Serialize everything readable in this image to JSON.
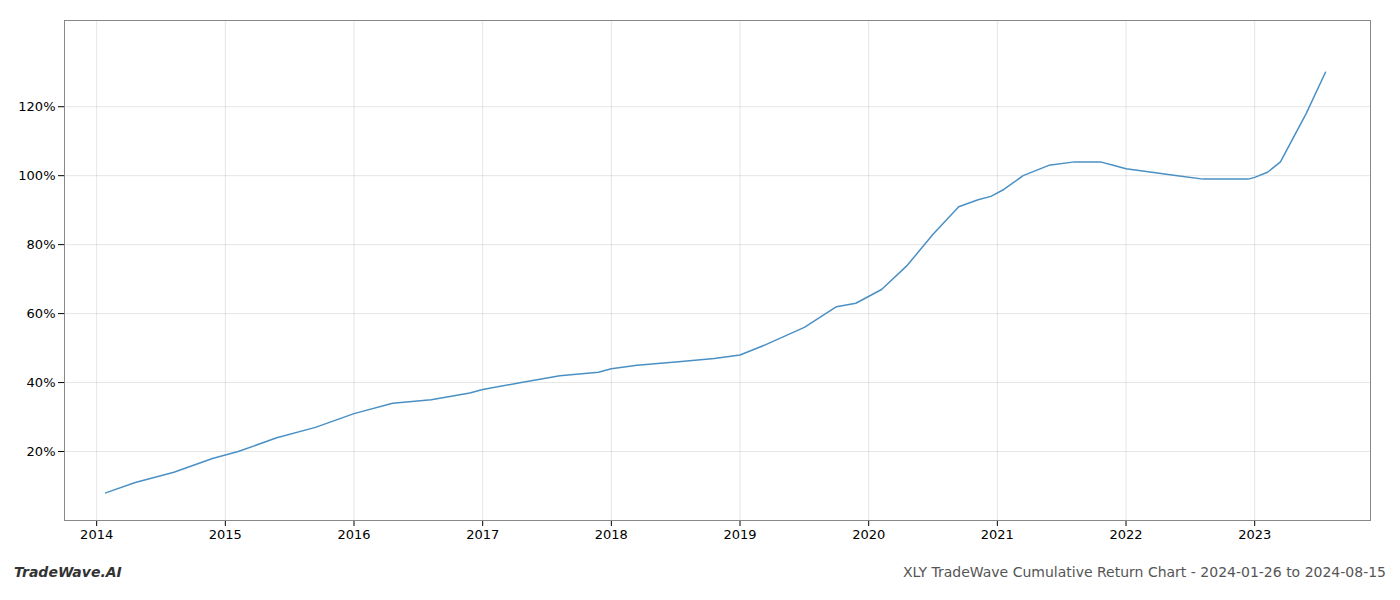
{
  "chart_data": {
    "type": "line",
    "x": [
      2014.07,
      2014.3,
      2014.6,
      2014.9,
      2015.1,
      2015.4,
      2015.7,
      2016.0,
      2016.3,
      2016.6,
      2016.9,
      2017.0,
      2017.3,
      2017.6,
      2017.9,
      2018.0,
      2018.2,
      2018.5,
      2018.8,
      2018.9,
      2019.0,
      2019.2,
      2019.5,
      2019.75,
      2019.9,
      2020.1,
      2020.3,
      2020.5,
      2020.7,
      2020.85,
      2020.95,
      2021.05,
      2021.2,
      2021.4,
      2021.6,
      2021.8,
      2021.9,
      2022.0,
      2022.2,
      2022.4,
      2022.6,
      2022.8,
      2022.95,
      2023.0,
      2023.1,
      2023.2,
      2023.4,
      2023.55
    ],
    "values": [
      8,
      11,
      14,
      18,
      20,
      24,
      27,
      31,
      34,
      35,
      37,
      38,
      40,
      42,
      43,
      44,
      45,
      46,
      47,
      47.5,
      48,
      51,
      56,
      62,
      63,
      67,
      74,
      83,
      91,
      93,
      94,
      96,
      100,
      103,
      104,
      104,
      103,
      102,
      101,
      100,
      99,
      99,
      99,
      99.5,
      101,
      104,
      118,
      130
    ],
    "color": "#4a90c4",
    "xlim": [
      2013.75,
      2023.9
    ],
    "ylim": [
      0,
      145
    ],
    "xticks": [
      2014,
      2015,
      2016,
      2017,
      2018,
      2019,
      2020,
      2021,
      2022,
      2023
    ],
    "yticks": [
      {
        "value": 20,
        "label": "20%"
      },
      {
        "value": 40,
        "label": "40%"
      },
      {
        "value": 60,
        "label": "60%"
      },
      {
        "value": 80,
        "label": "80%"
      },
      {
        "value": 100,
        "label": "100%"
      },
      {
        "value": 120,
        "label": "120%"
      }
    ],
    "grid": true,
    "annotations": [
      "TradeWave.AI",
      "XLY TradeWave Cumulative Return Chart - 2024-01-26 to 2024-08-15"
    ]
  }
}
